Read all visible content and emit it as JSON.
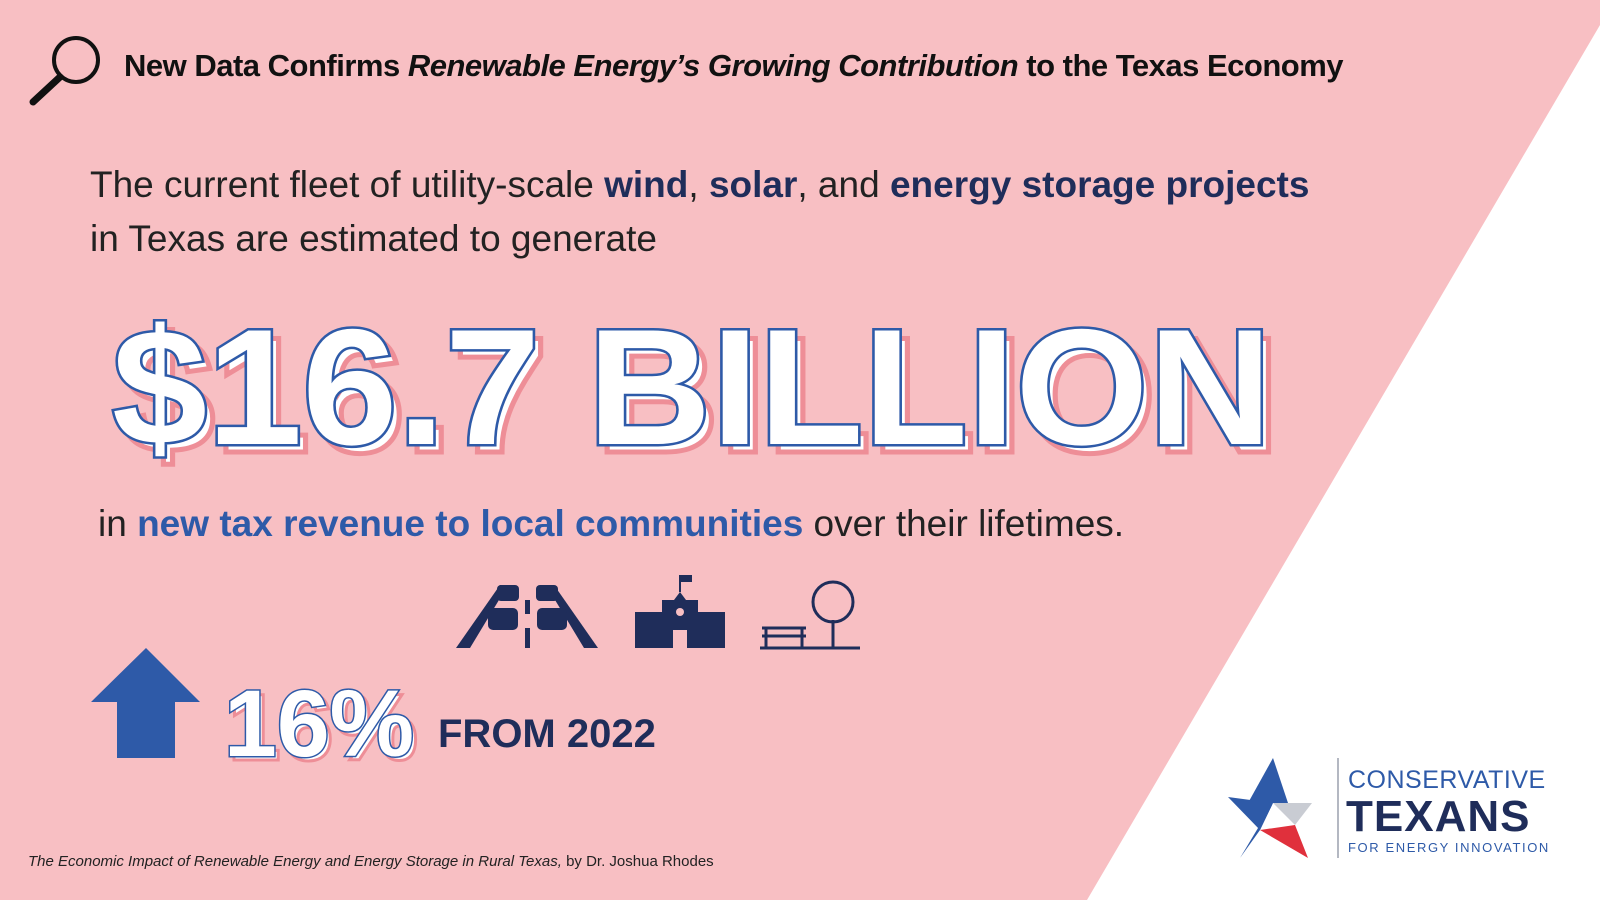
{
  "header": {
    "title": [
      "New Data Confirms ",
      "Renewable Energy’s Growing Contribution",
      " to the Texas Economy"
    ]
  },
  "intro": [
    "The current fleet of utility-scale ",
    "wind",
    ", ",
    "solar",
    ", and ",
    "energy storage projects",
    "in Texas are estimated to generate"
  ],
  "headline": "$16.7 BILLION",
  "detail": [
    "in ",
    "new tax revenue to local communities",
    " over their lifetimes."
  ],
  "change": {
    "value": "16%",
    "label": "FROM 2022"
  },
  "source": {
    "title": "The Economic Impact of Renewable Energy and Energy Storage in Rural Texas,",
    "author": " by Dr. Joshua Rhodes"
  },
  "logo": {
    "line1": "CONSERVATIVE",
    "line2": "TEXANS",
    "line3": "FOR ENERGY INNOVATION"
  }
}
